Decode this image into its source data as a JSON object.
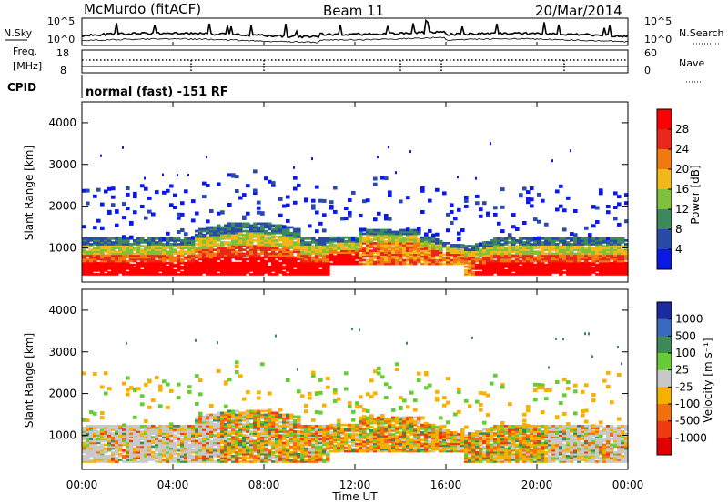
{
  "header": {
    "station": "McMurdo (fitACF)",
    "beam": "Beam 11",
    "date": "20/Mar/2014"
  },
  "noise_panel": {
    "left_label": "N.Sky",
    "right_label": "N.Search",
    "left_ticks": [
      "10^5",
      "10^0"
    ],
    "right_ticks": [
      "10^5",
      "10^0"
    ]
  },
  "freq_panel": {
    "left_label_1": "Freq.",
    "left_label_2": "[MHz]",
    "left_ticks": [
      "18",
      "8"
    ],
    "right_label": "Nave",
    "right_ticks": [
      "60",
      "0"
    ]
  },
  "cpid_panel": {
    "label": "CPID",
    "mode": "normal (fast) -151 RF"
  },
  "time_axis": {
    "label": "Time UT",
    "ticks": [
      "00:00",
      "04:00",
      "08:00",
      "12:00",
      "16:00",
      "20:00",
      "00:00"
    ]
  },
  "chart_data": [
    {
      "type": "heatmap",
      "panel": "power",
      "ylabel": "Slant Range [km]",
      "yticks": [
        "1000",
        "2000",
        "3000",
        "4000"
      ],
      "ylim": [
        180,
        4500
      ],
      "x": [
        "00:00",
        "24:00"
      ],
      "colorbar_label": "Power [dB]",
      "colorbar_ticks": [
        "4",
        "8",
        "12",
        "16",
        "20",
        "24",
        "28"
      ],
      "colorbar_colors": [
        "#0a1ae6",
        "#2a4aa8",
        "#3c8a5a",
        "#7fc23a",
        "#f2b81a",
        "#f07a10",
        "#e8281a",
        "#ff0000"
      ]
    },
    {
      "type": "heatmap",
      "panel": "velocity",
      "ylabel": "Slant Range [km]",
      "yticks": [
        "1000",
        "2000",
        "3000",
        "4000"
      ],
      "ylim": [
        180,
        4500
      ],
      "x": [
        "00:00",
        "24:00"
      ],
      "colorbar_label": "Velocity [m s⁻¹]",
      "colorbar_ticks": [
        "1000",
        "500",
        "100",
        "25",
        "-25",
        "-100",
        "-500",
        "-1000"
      ],
      "colorbar_colors": [
        "#1a2aa0",
        "#3a6ac0",
        "#3c8a5a",
        "#66cc33",
        "#c8c8c8",
        "#f5b000",
        "#f07010",
        "#f03a10",
        "#e00000"
      ]
    }
  ]
}
